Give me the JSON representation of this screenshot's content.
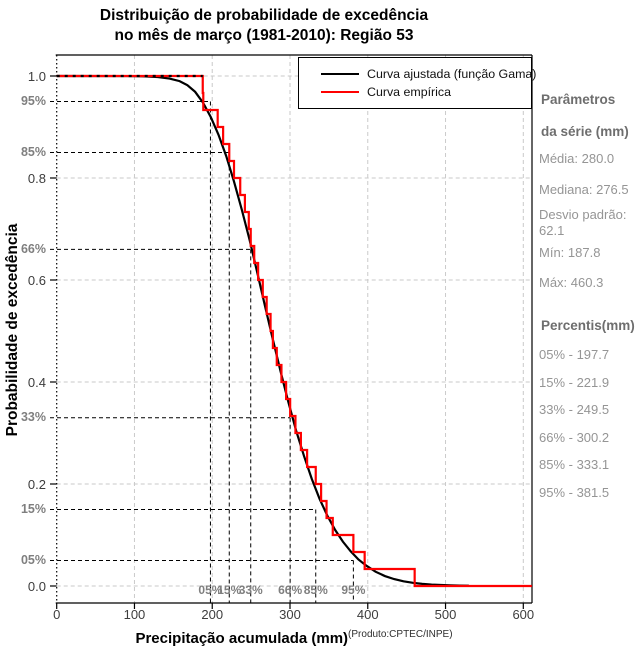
{
  "title": {
    "line1": "Distribuição de probabilidade de excedência",
    "line2": "no mês de março (1981-2010): Região 53"
  },
  "legend": {
    "items": [
      {
        "label": "Curva ajustada (função Gama)",
        "color": "#000000"
      },
      {
        "label": "Curva empírica",
        "color": "#ff0000"
      }
    ]
  },
  "side_panel": {
    "params_title_line1": "Parâmetros",
    "params_title_line2": "da série (mm)",
    "params": [
      "Média: 280.0",
      "Mediana: 276.5",
      "Desvio padrão: 62.1",
      "Mín: 187.8",
      "Máx: 460.3"
    ],
    "percentis_title": "Percentis(mm)",
    "percentis": [
      "05% - 197.7",
      "15% - 221.9",
      "33% - 249.5",
      "66% - 300.2",
      "85% - 333.1",
      "95% - 381.5"
    ]
  },
  "chart_data": {
    "type": "line",
    "title": "Distribuição de probabilidade de excedência no mês de março (1981-2010): Região 53",
    "xlabel": "Precipitação acumulada (mm)",
    "xlabel_note": "(Produto:CPTEC/INPE)",
    "ylabel": "Probabilidade de excedência",
    "xlim": [
      0,
      611
    ],
    "ylim": [
      -0.033,
      1.04
    ],
    "grid": true,
    "legend_position": "top-right-inside",
    "x_ticks": [
      0,
      100,
      200,
      300,
      400,
      500,
      600
    ],
    "y_ticks": [
      0,
      0.2,
      0.4,
      0.6,
      0.8,
      1.0
    ],
    "y_tick_labels": [
      "0.0",
      "0.2",
      "0.4",
      "0.6",
      "0.8",
      "1.0"
    ],
    "colors": {
      "fitted": "#000000",
      "empirical": "#ff0000",
      "gridline": "#cacaca",
      "guide": "#000000",
      "muted_text": "#7f7f7f"
    },
    "series": [
      {
        "name": "Curva ajustada (função Gama)",
        "color": "#000000",
        "style": "smooth",
        "points": [
          [
            0,
            1.0
          ],
          [
            90,
            0.9999
          ],
          [
            110,
            0.9995
          ],
          [
            130,
            0.998
          ],
          [
            145,
            0.995
          ],
          [
            158,
            0.99
          ],
          [
            168,
            0.982
          ],
          [
            178,
            0.969
          ],
          [
            188,
            0.948
          ],
          [
            198,
            0.92
          ],
          [
            208,
            0.885
          ],
          [
            218,
            0.843
          ],
          [
            228,
            0.793
          ],
          [
            238,
            0.738
          ],
          [
            248,
            0.679
          ],
          [
            258,
            0.614
          ],
          [
            268,
            0.548
          ],
          [
            278,
            0.483
          ],
          [
            288,
            0.42
          ],
          [
            298,
            0.36
          ],
          [
            308,
            0.304
          ],
          [
            318,
            0.255
          ],
          [
            328,
            0.21
          ],
          [
            338,
            0.171
          ],
          [
            348,
            0.138
          ],
          [
            358,
            0.11
          ],
          [
            368,
            0.087
          ],
          [
            378,
            0.068
          ],
          [
            388,
            0.052
          ],
          [
            398,
            0.04
          ],
          [
            410,
            0.028
          ],
          [
            422,
            0.0195
          ],
          [
            434,
            0.0135
          ],
          [
            446,
            0.0092
          ],
          [
            458,
            0.0063
          ],
          [
            470,
            0.0042
          ],
          [
            482,
            0.0028
          ],
          [
            494,
            0.0019
          ],
          [
            506,
            0.0013
          ],
          [
            518,
            0.0009
          ],
          [
            530,
            0.0006
          ]
        ]
      },
      {
        "name": "Curva empírica",
        "color": "#ff0000",
        "style": "step-exceedance",
        "n": 30,
        "sorted_values": [
          187.8,
          188.5,
          207,
          214,
          221.9,
          228,
          236,
          242,
          247,
          249.5,
          254,
          259,
          265,
          270,
          275,
          278,
          283,
          289,
          295,
          300.2,
          307,
          314,
          322,
          333.1,
          340,
          347,
          355,
          381.5,
          396,
          460.3
        ]
      }
    ],
    "percentile_guides": [
      {
        "bottom_label": "05%",
        "left_label": "95%",
        "x": 197.7,
        "y": 0.95
      },
      {
        "bottom_label": "15%",
        "left_label": "85%",
        "x": 221.9,
        "y": 0.85
      },
      {
        "bottom_label": "33%",
        "left_label": "66%",
        "x": 249.5,
        "y": 0.66
      },
      {
        "bottom_label": "66%",
        "left_label": "33%",
        "x": 300.2,
        "y": 0.33
      },
      {
        "bottom_label": "85%",
        "left_label": "15%",
        "x": 333.1,
        "y": 0.15
      },
      {
        "bottom_label": "95%",
        "left_label": "05%",
        "x": 381.5,
        "y": 0.05
      }
    ]
  }
}
